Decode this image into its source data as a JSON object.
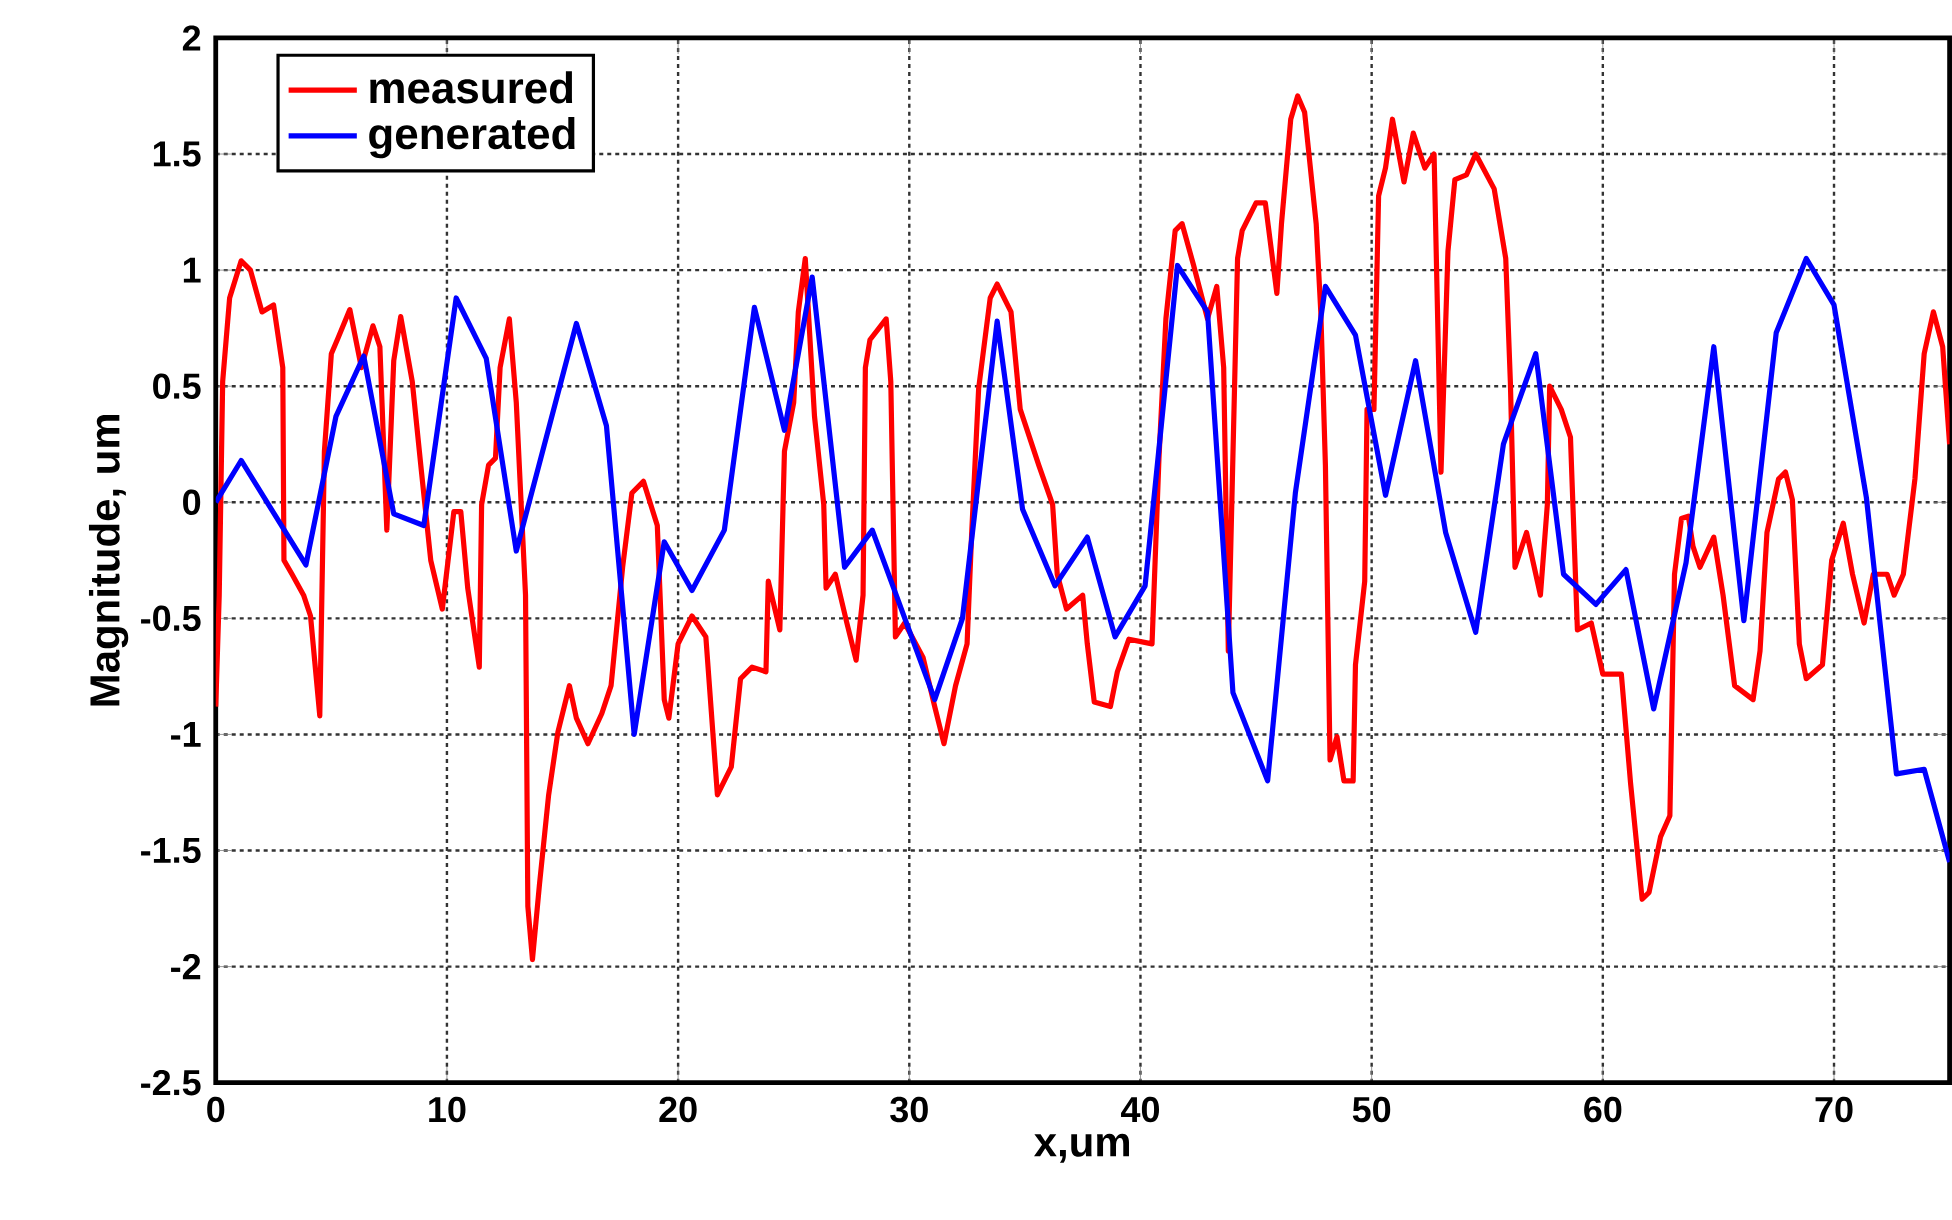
{
  "chart_data": {
    "type": "line",
    "xlabel": "x,um",
    "ylabel": "Magnitude, um",
    "xlim": [
      0,
      75
    ],
    "ylim": [
      -2.5,
      2
    ],
    "xticks": [
      0,
      10,
      20,
      30,
      40,
      50,
      60,
      70
    ],
    "yticks": [
      -2.5,
      -2,
      -1.5,
      -1,
      -0.5,
      0,
      0.5,
      1,
      1.5,
      2
    ],
    "grid": true,
    "legend": "top left",
    "series": [
      {
        "name": "measured",
        "color": "#ff0000",
        "x": [
          0,
          0.15,
          0.3,
          0.6,
          1.1,
          1.5,
          2.0,
          2.5,
          2.9,
          2.95,
          3.3,
          3.8,
          4.1,
          4.5,
          4.7,
          5.0,
          5.3,
          5.8,
          6.3,
          6.8,
          7.1,
          7.4,
          7.7,
          8.0,
          8.5,
          8.9,
          9.3,
          9.8,
          10.3,
          10.6,
          10.9,
          11.4,
          11.5,
          11.8,
          12.1,
          12.3,
          12.7,
          13.0,
          13.4,
          13.5,
          13.7,
          14.0,
          14.4,
          14.8,
          15.3,
          15.6,
          16.1,
          16.7,
          17.1,
          17.6,
          18.0,
          18.5,
          19.1,
          19.4,
          19.6,
          20.0,
          20.6,
          21.2,
          21.7,
          22.3,
          22.7,
          23.2,
          23.8,
          23.9,
          24.4,
          24.6,
          25.0,
          25.2,
          25.5,
          25.9,
          26.3,
          26.4,
          26.8,
          27.3,
          27.7,
          28.0,
          28.1,
          28.3,
          29.0,
          29.2,
          29.4,
          29.8,
          30.6,
          31.1,
          31.5,
          32.0,
          32.5,
          32.7,
          33.0,
          33.5,
          33.8,
          34.4,
          34.8,
          35.6,
          36.2,
          36.4,
          36.8,
          37.5,
          37.7,
          38.0,
          38.7,
          39.0,
          39.5,
          40.5,
          40.8,
          41.1,
          41.5,
          41.8,
          42.3,
          42.9,
          43.3,
          43.6,
          43.8,
          44.2,
          44.4,
          45.0,
          45.4,
          45.9,
          46.1,
          46.5,
          46.8,
          47.1,
          47.6,
          47.8,
          48.0,
          48.2,
          48.5,
          48.8,
          49.2,
          49.3,
          49.7,
          49.8,
          50.1,
          50.3,
          50.6,
          50.9,
          51.4,
          51.8,
          52.3,
          52.7,
          53.0,
          53.3,
          53.6,
          54.1,
          54.5,
          55.3,
          55.8,
          56.0,
          56.2,
          56.7,
          57.3,
          57.6,
          57.7,
          58.2,
          58.6,
          58.9,
          59.5,
          60.0,
          60.8,
          61.2,
          61.7,
          62.0,
          62.5,
          62.9,
          63.1,
          63.4,
          63.7,
          63.9,
          64.2,
          64.8,
          65.2,
          65.7,
          66.5,
          66.8,
          67.1,
          67.6,
          67.9,
          68.2,
          68.5,
          68.8,
          69.5,
          69.9,
          70.4,
          70.8,
          71.3,
          71.7,
          72.3,
          72.6,
          73.0,
          73.5,
          73.9,
          74.3,
          74.7,
          75
        ],
        "values": [
          -0.88,
          -0.4,
          0.52,
          0.88,
          1.04,
          1.0,
          0.82,
          0.85,
          0.58,
          -0.25,
          -0.31,
          -0.4,
          -0.49,
          -0.92,
          0.22,
          0.64,
          0.71,
          0.83,
          0.58,
          0.76,
          0.67,
          -0.12,
          0.61,
          0.8,
          0.52,
          0.13,
          -0.25,
          -0.46,
          -0.04,
          -0.04,
          -0.37,
          -0.71,
          -0.01,
          0.16,
          0.19,
          0.58,
          0.79,
          0.43,
          -0.4,
          -1.74,
          -1.97,
          -1.65,
          -1.26,
          -0.99,
          -0.79,
          -0.93,
          -1.04,
          -0.91,
          -0.79,
          -0.28,
          0.04,
          0.09,
          -0.1,
          -0.85,
          -0.93,
          -0.61,
          -0.49,
          -0.58,
          -1.26,
          -1.14,
          -0.76,
          -0.71,
          -0.73,
          -0.34,
          -0.55,
          0.22,
          0.43,
          0.82,
          1.05,
          0.37,
          -0.01,
          -0.37,
          -0.31,
          -0.52,
          -0.68,
          -0.4,
          0.58,
          0.7,
          0.79,
          0.52,
          -0.58,
          -0.52,
          -0.67,
          -0.88,
          -1.04,
          -0.79,
          -0.61,
          -0.13,
          0.49,
          0.88,
          0.94,
          0.82,
          0.4,
          0.16,
          -0.01,
          -0.31,
          -0.46,
          -0.4,
          -0.61,
          -0.86,
          -0.88,
          -0.73,
          -0.59,
          -0.61,
          0.19,
          0.79,
          1.17,
          1.2,
          1.02,
          0.79,
          0.93,
          0.58,
          -0.64,
          1.05,
          1.17,
          1.29,
          1.29,
          0.9,
          1.2,
          1.65,
          1.75,
          1.68,
          1.2,
          0.82,
          0.16,
          -1.11,
          -1.01,
          -1.2,
          -1.2,
          -0.7,
          -0.34,
          0.4,
          0.4,
          1.32,
          1.44,
          1.65,
          1.38,
          1.59,
          1.44,
          1.5,
          0.13,
          1.08,
          1.39,
          1.41,
          1.5,
          1.35,
          1.05,
          0.52,
          -0.28,
          -0.13,
          -0.4,
          -0.01,
          0.5,
          0.4,
          0.28,
          -0.55,
          -0.52,
          -0.74,
          -0.74,
          -1.21,
          -1.71,
          -1.68,
          -1.44,
          -1.35,
          -0.31,
          -0.07,
          -0.06,
          -0.19,
          -0.28,
          -0.15,
          -0.4,
          -0.79,
          -0.85,
          -0.64,
          -0.13,
          0.1,
          0.13,
          0.01,
          -0.61,
          -0.76,
          -0.7,
          -0.25,
          -0.09,
          -0.31,
          -0.52,
          -0.31,
          -0.31,
          -0.4,
          -0.31,
          0.1,
          0.64,
          0.82,
          0.67,
          0.25
        ]
      },
      {
        "name": "generated",
        "color": "#0000ff",
        "x": [
          0,
          1.1,
          3.9,
          5.2,
          6.4,
          7.7,
          9.0,
          10.4,
          11.7,
          13.0,
          15.6,
          16.9,
          18.1,
          19.4,
          20.6,
          22.0,
          23.3,
          24.6,
          25.8,
          27.2,
          28.4,
          31.1,
          32.3,
          33.8,
          34.9,
          36.3,
          37.7,
          38.9,
          40.2,
          41.6,
          42.9,
          44.0,
          45.5,
          46.7,
          48.0,
          49.3,
          50.6,
          51.9,
          53.2,
          54.5,
          55.7,
          57.1,
          58.3,
          59.7,
          61.0,
          62.2,
          63.6,
          64.8,
          66.1,
          67.5,
          68.8,
          70.0,
          71.4,
          72.7,
          73.9,
          75
        ],
        "values": [
          0,
          0.18,
          -0.27,
          0.37,
          0.63,
          -0.05,
          -0.1,
          0.88,
          0.62,
          -0.21,
          0.77,
          0.33,
          -1.0,
          -0.17,
          -0.38,
          -0.12,
          0.84,
          0.31,
          0.97,
          -0.28,
          -0.12,
          -0.85,
          -0.5,
          0.78,
          -0.03,
          -0.36,
          -0.15,
          -0.58,
          -0.36,
          1.02,
          0.82,
          -0.82,
          -1.2,
          0.04,
          0.93,
          0.72,
          0.03,
          0.61,
          -0.13,
          -0.56,
          0.25,
          0.64,
          -0.31,
          -0.44,
          -0.29,
          -0.89,
          -0.26,
          0.67,
          -0.51,
          0.73,
          1.05,
          0.85,
          0.02,
          -1.17,
          -1.15,
          -1.55
        ]
      }
    ]
  }
}
